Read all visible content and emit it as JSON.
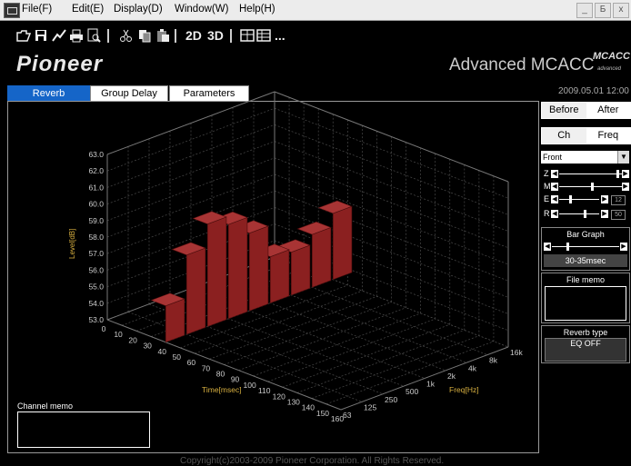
{
  "menu": {
    "items": [
      "File(F)",
      "Edit(E)",
      "Display(D)",
      "Window(W)",
      "Help(H)"
    ],
    "window_buttons": [
      "_",
      "Б",
      "x"
    ]
  },
  "toolbar": {
    "icons": [
      "open-icon",
      "save-icon",
      "curve-icon",
      "print-icon",
      "print-preview-icon",
      "cut-icon",
      "copy-icon",
      "paste-icon",
      "grid-icon",
      "table-icon"
    ],
    "mode_2d": "2D",
    "mode_3d": "3D",
    "more": "..."
  },
  "header": {
    "brand": "Pioneer",
    "product": "Advanced MCACC",
    "logo_text": "MCACC",
    "logo_subtext": "advanced",
    "datetime": "2009.05.01 12:00"
  },
  "tabs": [
    "Reverb",
    "Group Delay",
    "Parameters"
  ],
  "chart_data": {
    "type": "bar",
    "view": "3d",
    "ylabel": "Level[dB]",
    "xlabel": "Time[msec]",
    "zlabel": "Freq[Hz]",
    "ylim": [
      53.0,
      63.0
    ],
    "y_ticks": [
      "53.0",
      "54.0",
      "55.0",
      "56.0",
      "57.0",
      "58.0",
      "59.0",
      "60.0",
      "61.0",
      "62.0",
      "63.0"
    ],
    "time_ticks": [
      "0",
      "10",
      "20",
      "30",
      "40",
      "50",
      "60",
      "70",
      "80",
      "90",
      "100",
      "110",
      "120",
      "130",
      "140",
      "150",
      "160"
    ],
    "freq_ticks": [
      "63",
      "125",
      "250",
      "500",
      "1k",
      "2k",
      "4k",
      "8k",
      "16k"
    ],
    "categories": [
      "63",
      "125",
      "250",
      "500",
      "1k",
      "2k",
      "4k",
      "8k",
      "16k"
    ],
    "values": [
      55.2,
      57.8,
      59.2,
      58.7,
      57.7,
      55.8,
      55.6,
      56.2,
      57.0
    ],
    "selected_time": "30-35msec",
    "bar_color": "#8b2020"
  },
  "channel_memo": {
    "label": "Channel memo",
    "value": ""
  },
  "right_panel": {
    "before_label": "Before",
    "after_label": "After",
    "ch_label": "Ch",
    "freq_label": "Freq",
    "channel_select": "Front",
    "sliders": [
      {
        "label": "Z",
        "value": ""
      },
      {
        "label": "M",
        "value": ""
      },
      {
        "label": "E",
        "value": "12"
      },
      {
        "label": "R",
        "value": "50"
      }
    ],
    "bar_graph_label": "Bar Graph",
    "bar_graph_value": "30-35msec",
    "file_memo_label": "File memo",
    "file_memo_value": "",
    "reverb_type_label": "Reverb type",
    "reverb_type_value": "EQ OFF"
  },
  "footer": {
    "copyright": "Copyright(c)2003-2009 Pioneer Corporation. All Rights Reserved."
  }
}
